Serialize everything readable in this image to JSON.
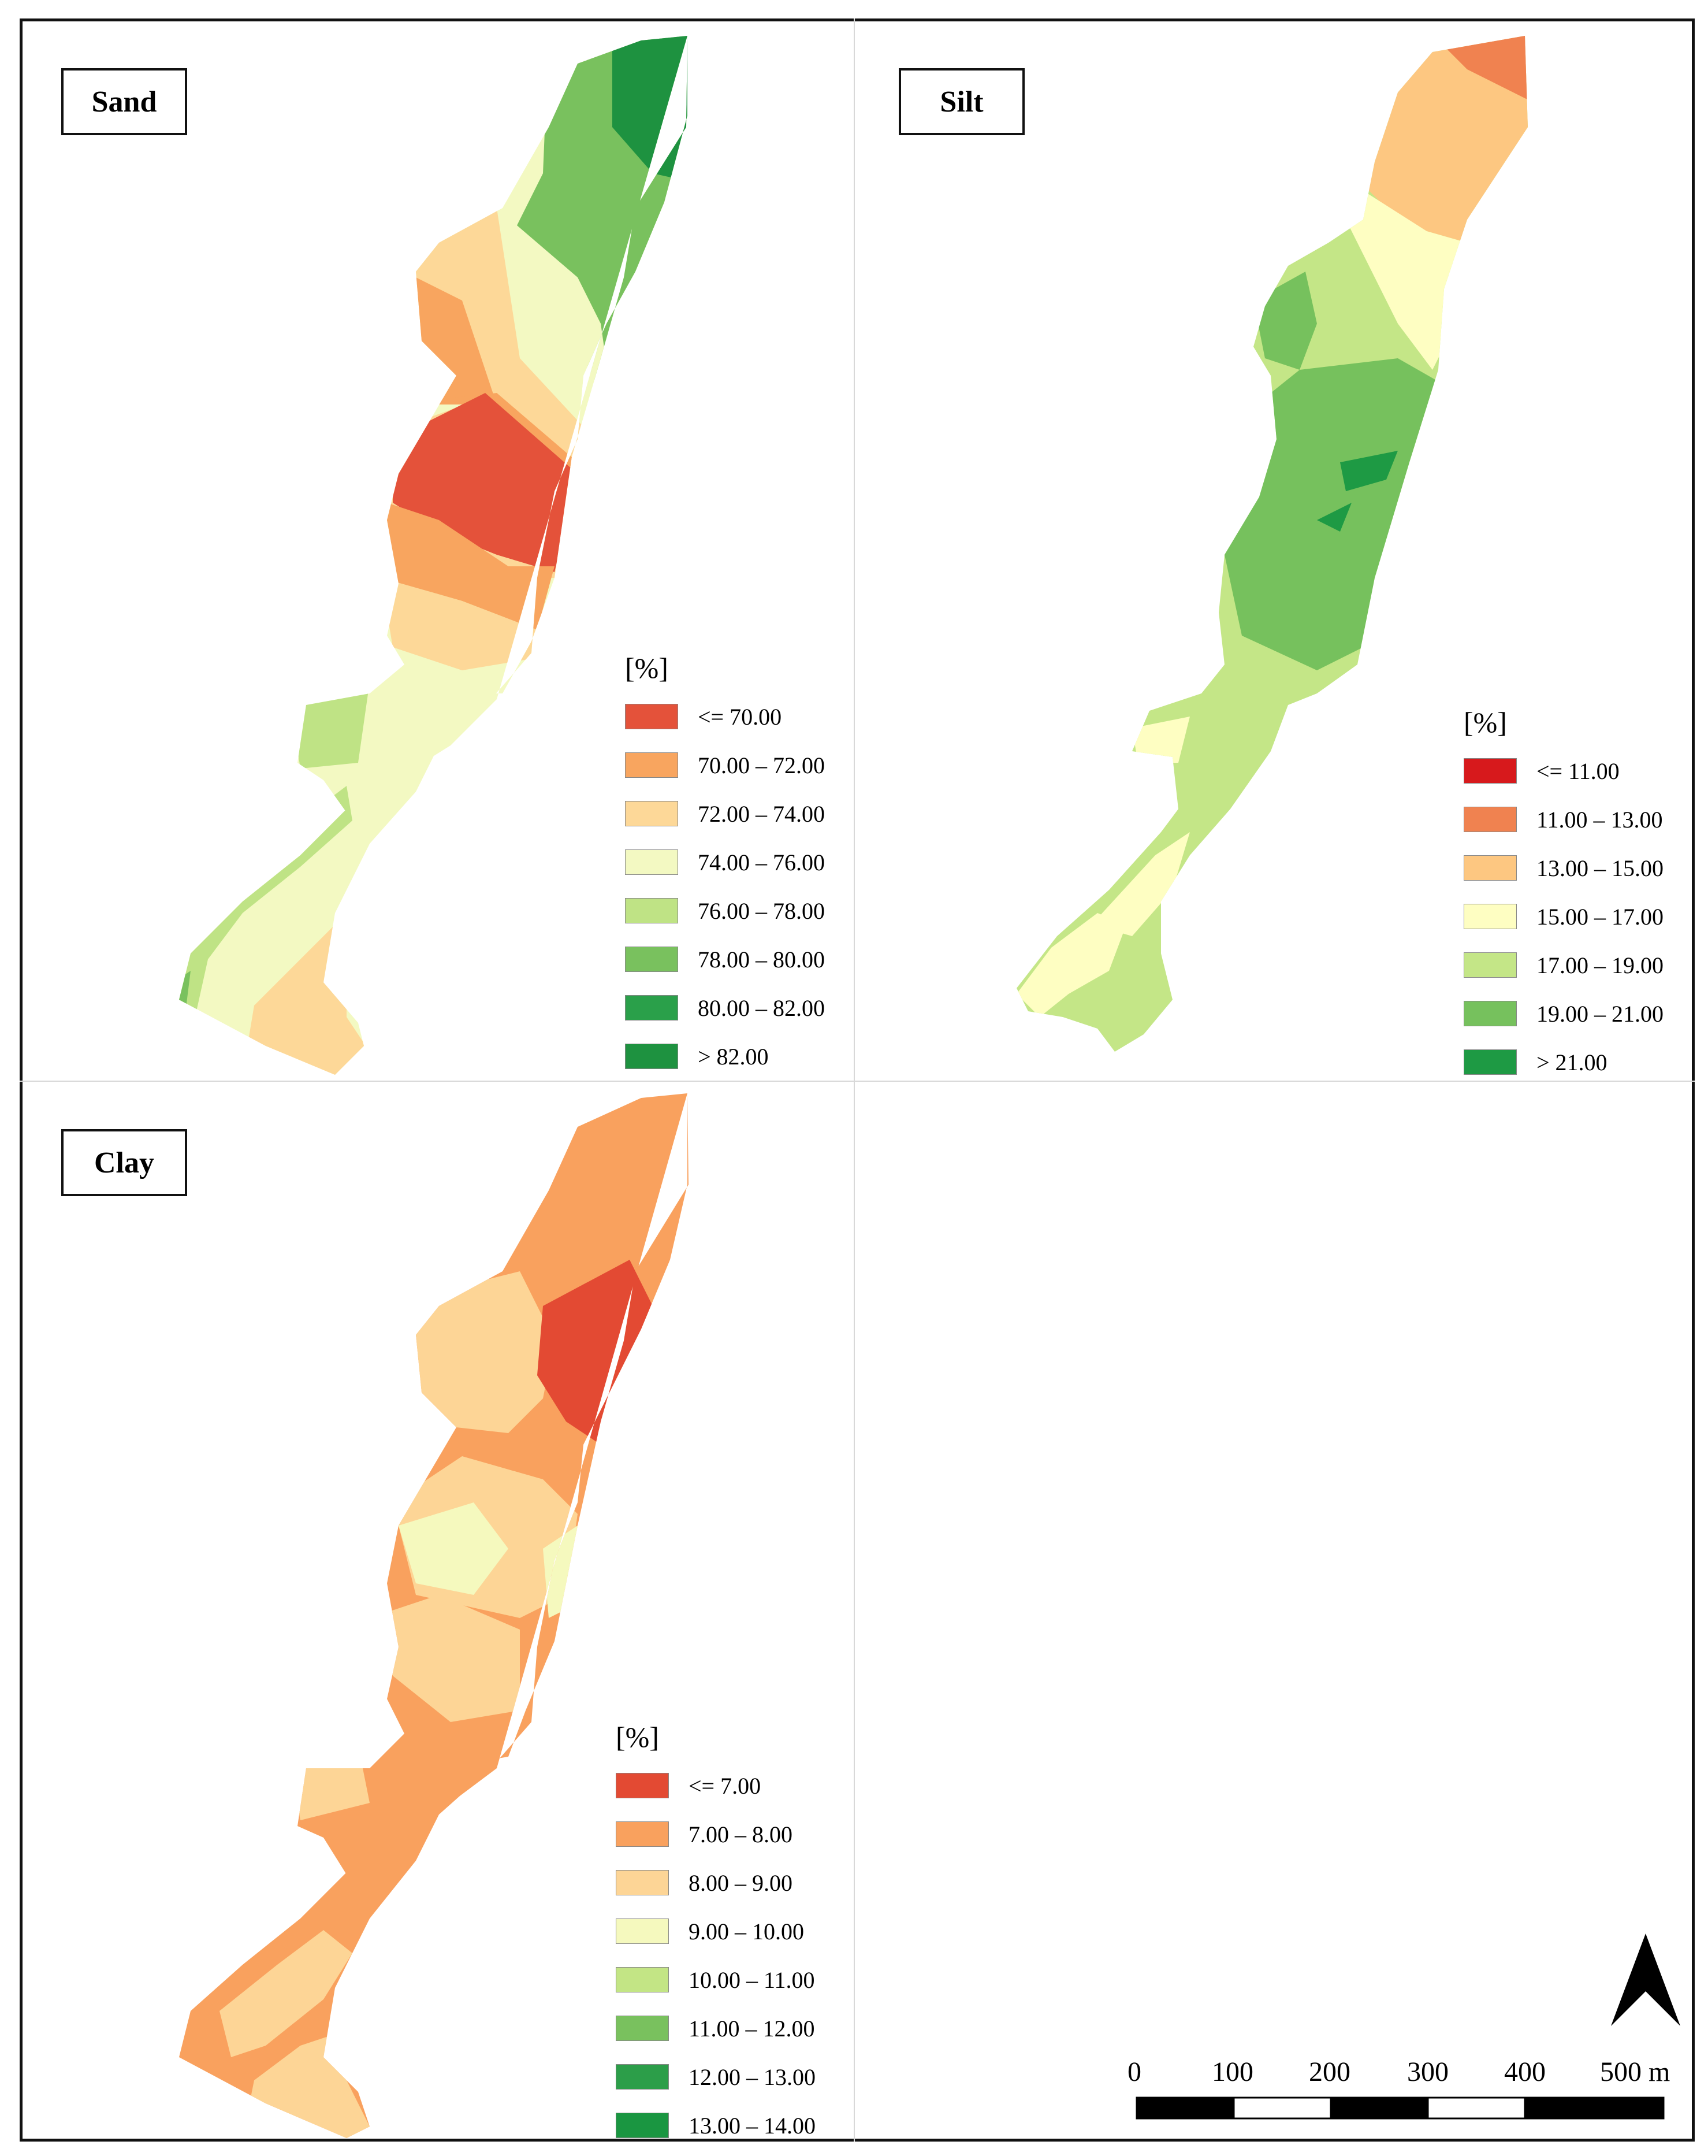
{
  "panels": {
    "sand": {
      "label": "Sand",
      "legend": {
        "title": "[%]",
        "classes": [
          {
            "label": "<= 70.00",
            "color": "#e4523a"
          },
          {
            "label": "70.00 – 72.00",
            "color": "#f8a55f"
          },
          {
            "label": "72.00 – 74.00",
            "color": "#fdd898"
          },
          {
            "label": "74.00 – 76.00",
            "color": "#f3f9c2"
          },
          {
            "label": "76.00 – 78.00",
            "color": "#bfe385"
          },
          {
            "label": "78.00 – 80.00",
            "color": "#79c15e"
          },
          {
            "label": "80.00 – 82.00",
            "color": "#2aa04a"
          },
          {
            "label": "> 82.00",
            "color": "#1e9240"
          }
        ]
      }
    },
    "silt": {
      "label": "Silt",
      "legend": {
        "title": "[%]",
        "classes": [
          {
            "label": "<= 11.00",
            "color": "#d7191c"
          },
          {
            "label": "11.00 – 13.00",
            "color": "#f08250"
          },
          {
            "label": "13.00 – 15.00",
            "color": "#fdc781"
          },
          {
            "label": "15.00 – 17.00",
            "color": "#fefec2"
          },
          {
            "label": "17.00 – 19.00",
            "color": "#c4e687"
          },
          {
            "label": "19.00 – 21.00",
            "color": "#76c15d"
          },
          {
            "label": "> 21.00",
            "color": "#1e9a44"
          }
        ]
      }
    },
    "clay": {
      "label": "Clay",
      "legend": {
        "title": "[%]",
        "classes": [
          {
            "label": "<= 7.00",
            "color": "#e34a33"
          },
          {
            "label": "7.00 – 8.00",
            "color": "#f9a15e"
          },
          {
            "label": "8.00 – 9.00",
            "color": "#fdd596"
          },
          {
            "label": "9.00 – 10.00",
            "color": "#f5f9be"
          },
          {
            "label": "10.00 – 11.00",
            "color": "#c3e585"
          },
          {
            "label": "11.00 – 12.00",
            "color": "#79c15e"
          },
          {
            "label": "12.00 – 13.00",
            "color": "#2c9e49"
          },
          {
            "label": "13.00 – 14.00",
            "color": "#1a9641"
          }
        ]
      }
    }
  },
  "scale_bar": {
    "ticks": [
      "0",
      "100",
      "200",
      "300",
      "400",
      "500 m"
    ]
  },
  "north_arrow": {
    "icon": "north-arrow-icon"
  }
}
